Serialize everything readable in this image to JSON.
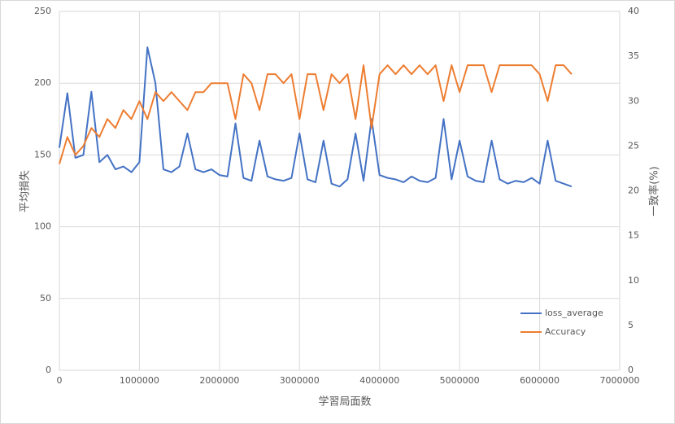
{
  "chart_data": {
    "type": "line",
    "x_label": "学習局面数",
    "y_label": "平均損失",
    "y2_label": "一致率(%)",
    "x": [
      0,
      100000,
      200000,
      300000,
      400000,
      500000,
      600000,
      700000,
      800000,
      900000,
      1000000,
      1100000,
      1200000,
      1300000,
      1400000,
      1500000,
      1600000,
      1700000,
      1800000,
      1900000,
      2000000,
      2100000,
      2200000,
      2300000,
      2400000,
      2500000,
      2600000,
      2700000,
      2800000,
      2900000,
      3000000,
      3100000,
      3200000,
      3300000,
      3400000,
      3500000,
      3600000,
      3700000,
      3800000,
      3900000,
      4000000,
      4100000,
      4200000,
      4300000,
      4400000,
      4500000,
      4600000,
      4700000,
      4800000,
      4900000,
      5000000,
      5100000,
      5200000,
      5300000,
      5400000,
      5500000,
      5600000,
      5700000,
      5800000,
      5900000,
      6000000,
      6100000,
      6200000,
      6300000,
      6400000
    ],
    "series": [
      {
        "name": "loss_average",
        "color": "#4472c4",
        "axis": "y",
        "values": [
          155,
          193,
          148,
          150,
          194,
          145,
          150,
          140,
          142,
          138,
          145,
          225,
          200,
          140,
          138,
          142,
          165,
          140,
          138,
          140,
          136,
          135,
          172,
          134,
          132,
          160,
          135,
          133,
          132,
          134,
          165,
          133,
          131,
          160,
          130,
          128,
          133,
          165,
          132,
          175,
          136,
          134,
          133,
          131,
          135,
          132,
          131,
          134,
          175,
          133,
          160,
          135,
          132,
          131,
          160,
          133,
          130,
          132,
          131,
          134,
          130,
          160,
          132,
          130,
          128
        ]
      },
      {
        "name": "Accuracy",
        "color": "#ed7d31",
        "axis": "y2",
        "values": [
          23,
          26,
          24,
          25,
          27,
          26,
          28,
          27,
          29,
          28,
          30,
          28,
          31,
          30,
          31,
          30,
          29,
          31,
          31,
          32,
          32,
          32,
          28,
          33,
          32,
          29,
          33,
          33,
          32,
          33,
          28,
          33,
          33,
          29,
          33,
          32,
          33,
          28,
          34,
          27,
          33,
          34,
          33,
          34,
          33,
          34,
          33,
          34,
          30,
          34,
          31,
          34,
          34,
          34,
          31,
          34,
          34,
          34,
          34,
          34,
          33,
          30,
          34,
          34,
          33
        ]
      }
    ],
    "xlim": [
      0,
      7000000
    ],
    "xticks": [
      0,
      1000000,
      2000000,
      3000000,
      4000000,
      5000000,
      6000000,
      7000000
    ],
    "ylim": [
      0,
      250
    ],
    "yticks": [
      0,
      50,
      100,
      150,
      200,
      250
    ],
    "y2lim": [
      0,
      40
    ],
    "y2ticks": [
      0,
      5,
      10,
      15,
      20,
      25,
      30,
      35,
      40
    ],
    "grid": true,
    "legend": "lower right"
  }
}
